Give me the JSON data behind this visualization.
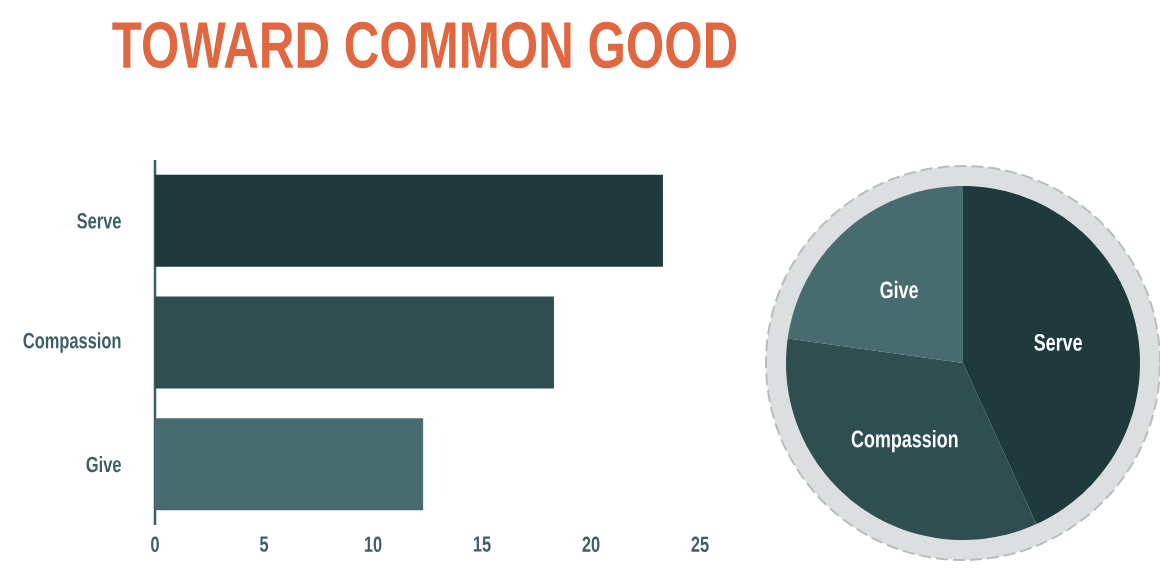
{
  "chart_data": [
    {
      "type": "bar",
      "title": "TOWARD COMMON GOOD",
      "orientation": "horizontal",
      "categories": [
        "Serve",
        "Compassion",
        "Give"
      ],
      "values": [
        23.3,
        18.3,
        12.3
      ],
      "colors": [
        "#1e3a3d",
        "#2f4e50",
        "#476b6e"
      ],
      "xlim": [
        0,
        25
      ],
      "xticks": [
        0,
        5,
        10,
        15,
        20,
        25
      ]
    },
    {
      "type": "pie",
      "categories": [
        "Serve",
        "Compassion",
        "Give"
      ],
      "values": [
        43.2,
        34.0,
        22.8
      ],
      "colors": [
        "#1e3a3d",
        "#2f4e50",
        "#476b6e"
      ]
    }
  ]
}
